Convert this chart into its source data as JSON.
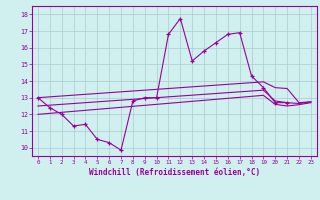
{
  "background_color": "#cff0ee",
  "line_color": "#990099",
  "grid_color": "#aacccc",
  "xlabel": "Windchill (Refroidissement éolien,°C)",
  "xlim": [
    -0.5,
    23.5
  ],
  "ylim": [
    9.5,
    18.5
  ],
  "xticks": [
    0,
    1,
    2,
    3,
    4,
    5,
    6,
    7,
    8,
    9,
    10,
    11,
    12,
    13,
    14,
    15,
    16,
    17,
    18,
    19,
    20,
    21,
    22,
    23
  ],
  "yticks": [
    10,
    11,
    12,
    13,
    14,
    15,
    16,
    17,
    18
  ],
  "x_main": [
    0,
    1,
    2,
    3,
    4,
    5,
    6,
    7,
    8,
    9,
    10,
    11,
    12,
    13,
    14,
    15,
    16,
    17,
    18,
    19,
    20,
    21
  ],
  "y_main": [
    13.0,
    12.4,
    12.0,
    11.3,
    11.4,
    10.5,
    10.3,
    9.85,
    12.8,
    13.0,
    13.0,
    16.8,
    17.75,
    15.2,
    15.8,
    16.3,
    16.8,
    16.9,
    14.3,
    13.6,
    12.7,
    12.7
  ],
  "x_upper": [
    0,
    1,
    2,
    3,
    4,
    5,
    6,
    7,
    8,
    9,
    10,
    11,
    12,
    13,
    14,
    15,
    16,
    17,
    18,
    19,
    20,
    21,
    22,
    23
  ],
  "y_upper": [
    13.0,
    13.05,
    13.1,
    13.15,
    13.2,
    13.25,
    13.3,
    13.35,
    13.4,
    13.45,
    13.5,
    13.55,
    13.6,
    13.65,
    13.7,
    13.75,
    13.8,
    13.85,
    13.9,
    13.95,
    13.6,
    13.55,
    12.7,
    12.75
  ],
  "x_mid": [
    0,
    1,
    2,
    3,
    4,
    5,
    6,
    7,
    8,
    9,
    10,
    11,
    12,
    13,
    14,
    15,
    16,
    17,
    18,
    19,
    20,
    21,
    22,
    23
  ],
  "y_mid": [
    12.5,
    12.55,
    12.6,
    12.65,
    12.7,
    12.75,
    12.8,
    12.85,
    12.9,
    12.95,
    13.0,
    13.05,
    13.1,
    13.15,
    13.2,
    13.25,
    13.3,
    13.35,
    13.4,
    13.45,
    12.8,
    12.7,
    12.65,
    12.75
  ],
  "x_lower": [
    0,
    1,
    2,
    3,
    4,
    5,
    6,
    7,
    8,
    9,
    10,
    11,
    12,
    13,
    14,
    15,
    16,
    17,
    18,
    19,
    20,
    21,
    22,
    23
  ],
  "y_lower": [
    12.0,
    12.06,
    12.12,
    12.18,
    12.24,
    12.3,
    12.36,
    12.42,
    12.48,
    12.54,
    12.6,
    12.66,
    12.72,
    12.78,
    12.84,
    12.9,
    12.96,
    13.02,
    13.08,
    13.14,
    12.6,
    12.5,
    12.58,
    12.7
  ]
}
